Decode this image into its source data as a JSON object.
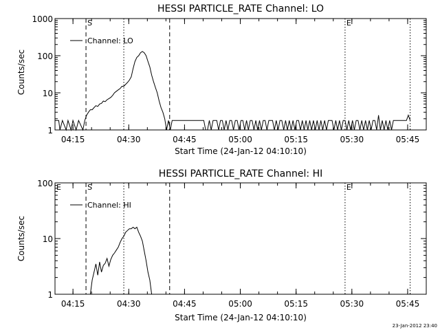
{
  "footer": {
    "stamp": "23-Jan-2012 23:40"
  },
  "chart_data": [
    {
      "type": "line",
      "title": "HESSI PARTICLE_RATE Channel: LO",
      "xlabel": "Start Time (24-Jan-12 04:10:10)",
      "ylabel": "Counts/sec",
      "yscale": "log",
      "ylim": [
        1,
        1000
      ],
      "xlim": [
        "04:10:10",
        "05:50:00"
      ],
      "yticks": [
        {
          "value": 1,
          "label": "1"
        },
        {
          "value": 10,
          "label": "10"
        },
        {
          "value": 100,
          "label": "100"
        },
        {
          "value": 1000,
          "label": "1000"
        }
      ],
      "xticks": [
        {
          "value": "04:15",
          "label": "04:15"
        },
        {
          "value": "04:30",
          "label": "04:30"
        },
        {
          "value": "04:45",
          "label": "04:45"
        },
        {
          "value": "05:00",
          "label": "05:00"
        },
        {
          "value": "05:15",
          "label": "05:15"
        },
        {
          "value": "05:30",
          "label": "05:30"
        },
        {
          "value": "05:45",
          "label": "05:45"
        }
      ],
      "legend": {
        "position": "top-left",
        "entries": [
          "Channel: LO"
        ]
      },
      "markers": [
        {
          "time": "04:18:30",
          "style": "dashed",
          "label": "S"
        },
        {
          "time": "04:28:40",
          "style": "dotted",
          "label": ""
        },
        {
          "time": "04:41:00",
          "style": "dashed",
          "label": ""
        },
        {
          "time": "05:28:10",
          "style": "dotted",
          "label": "E"
        },
        {
          "time": "05:45:40",
          "style": "dotted",
          "label": ""
        }
      ],
      "series": [
        {
          "name": "Channel: LO",
          "x": [
            "04:10:10",
            "04:11:10",
            "04:11:30",
            "04:12:10",
            "04:13:10",
            "04:13:40",
            "04:14:30",
            "04:15:00",
            "04:15:50",
            "04:16:30",
            "04:17:40",
            "04:18:10",
            "04:18:40",
            "04:19:10",
            "04:19:40",
            "04:20:10",
            "04:20:40",
            "04:21:10",
            "04:21:40",
            "04:22:10",
            "04:22:40",
            "04:23:10",
            "04:23:40",
            "04:24:10",
            "04:24:40",
            "04:25:10",
            "04:25:40",
            "04:26:10",
            "04:26:40",
            "04:27:10",
            "04:27:40",
            "04:28:10",
            "04:28:40",
            "04:29:10",
            "04:29:40",
            "04:30:10",
            "04:30:40",
            "04:31:10",
            "04:31:40",
            "04:32:10",
            "04:32:40",
            "04:33:10",
            "04:33:40",
            "04:34:10",
            "04:34:40",
            "04:35:10",
            "04:35:40",
            "04:36:10",
            "04:36:40",
            "04:37:10",
            "04:37:40",
            "04:38:10",
            "04:38:40",
            "04:39:10",
            "04:39:40",
            "04:40:10",
            "04:40:40",
            "04:41:10",
            "04:41:40",
            "04:42:10",
            "04:42:40",
            "04:43:10",
            "04:43:40",
            "04:44:10",
            "04:44:40",
            "04:45:10",
            "04:45:40",
            "04:46:10",
            "04:46:40",
            "04:47:10",
            "04:47:40",
            "04:48:10",
            "04:48:40",
            "04:49:10",
            "04:49:40",
            "04:50:10",
            "04:50:40",
            "04:51:10",
            "04:51:40",
            "04:52:10",
            "04:52:40",
            "04:53:10",
            "04:53:40",
            "04:54:10",
            "04:54:40",
            "04:55:10",
            "04:55:40",
            "04:56:10",
            "04:56:40",
            "04:57:10",
            "04:57:40",
            "04:58:10",
            "04:58:40",
            "04:59:10",
            "04:59:40",
            "05:00:10",
            "05:00:40",
            "05:01:10",
            "05:01:40",
            "05:02:10",
            "05:02:40",
            "05:03:10",
            "05:03:40",
            "05:04:10",
            "05:04:40",
            "05:05:10",
            "05:05:40",
            "05:06:10",
            "05:06:40",
            "05:07:10",
            "05:07:40",
            "05:08:10",
            "05:08:40",
            "05:09:10",
            "05:09:40",
            "05:10:10",
            "05:10:40",
            "05:11:10",
            "05:11:40",
            "05:12:10",
            "05:12:40",
            "05:13:10",
            "05:13:40",
            "05:14:10",
            "05:14:40",
            "05:15:10",
            "05:15:40",
            "05:16:10",
            "05:16:40",
            "05:17:10",
            "05:17:40",
            "05:18:10",
            "05:18:40",
            "05:19:10",
            "05:19:40",
            "05:20:10",
            "05:20:40",
            "05:21:10",
            "05:21:40",
            "05:22:10",
            "05:22:40",
            "05:23:10",
            "05:23:40",
            "05:24:10",
            "05:24:40",
            "05:25:10",
            "05:25:40",
            "05:26:10",
            "05:26:40",
            "05:27:10",
            "05:27:40",
            "05:28:10",
            "05:28:40",
            "05:29:10",
            "05:29:40",
            "05:30:10",
            "05:30:40",
            "05:31:10",
            "05:31:40",
            "05:32:10",
            "05:32:40",
            "05:33:10",
            "05:33:40",
            "05:34:10",
            "05:34:40",
            "05:35:10",
            "05:35:40",
            "05:36:10",
            "05:36:40",
            "05:37:10",
            "05:37:40",
            "05:38:10",
            "05:38:40",
            "05:39:10",
            "05:39:40",
            "05:40:10",
            "05:40:40",
            "05:41:10",
            "05:41:40",
            "05:42:10",
            "05:42:40",
            "05:43:10",
            "05:43:40",
            "05:44:10",
            "05:44:40",
            "05:45:10",
            "05:45:40"
          ],
          "y": [
            1.8,
            1.8,
            1,
            1.8,
            1,
            1.8,
            1,
            1.8,
            1,
            1.8,
            1,
            1.8,
            2.5,
            3,
            3.5,
            3.5,
            4,
            4.5,
            4.3,
            5,
            5.2,
            6,
            5.8,
            6.5,
            7,
            7.5,
            8.5,
            10,
            11,
            12,
            13,
            15,
            15,
            17,
            19,
            22,
            27,
            45,
            70,
            90,
            100,
            120,
            130,
            120,
            100,
            70,
            50,
            30,
            20,
            14,
            10,
            6,
            4,
            3,
            2,
            1,
            1.8,
            1,
            1.8,
            1.8,
            1.8,
            1.8,
            1.8,
            1.8,
            1.8,
            1.8,
            1.8,
            1.8,
            1.8,
            1.8,
            1.8,
            1.8,
            1.8,
            1.8,
            1.8,
            1.8,
            1,
            1,
            1.8,
            1,
            1.8,
            1.8,
            1.8,
            1,
            1.8,
            1.8,
            1,
            1.8,
            1,
            1.8,
            1.8,
            1,
            1.8,
            1.8,
            1,
            1.8,
            1.8,
            1,
            1.8,
            1,
            1.8,
            1.8,
            1,
            1.8,
            1,
            1.8,
            1,
            1.8,
            1.8,
            1,
            1.8,
            1.8,
            1.8,
            1,
            1.8,
            1,
            1.8,
            1.8,
            1,
            1.8,
            1,
            1.8,
            1,
            1.8,
            1,
            1.8,
            1.8,
            1,
            1.8,
            1,
            1.8,
            1,
            1.8,
            1,
            1.8,
            1,
            1.8,
            1,
            1.8,
            1,
            1.8,
            1,
            1.8,
            1.8,
            1.8,
            1,
            1.8,
            1,
            1.8,
            1,
            1.8,
            1.8,
            1,
            1.8,
            1,
            1.8,
            1,
            1.8,
            1.8,
            1,
            1.8,
            1,
            1.8,
            1,
            1.8,
            1,
            1.8,
            1.8,
            1,
            2.5,
            1,
            1.8,
            1,
            1.8,
            1,
            1.8,
            1,
            1.8,
            1.8,
            1.8,
            1.8,
            1.8,
            1.8,
            1.8,
            1.8,
            2.5,
            1.8
          ]
        }
      ]
    },
    {
      "type": "line",
      "title": "HESSI PARTICLE_RATE Channel: HI",
      "xlabel": "Start Time (24-Jan-12 04:10:10)",
      "ylabel": "Counts/sec",
      "yscale": "log",
      "ylim": [
        1,
        100
      ],
      "xlim": [
        "04:10:10",
        "05:50:00"
      ],
      "yticks": [
        {
          "value": 1,
          "label": "1"
        },
        {
          "value": 10,
          "label": "10"
        },
        {
          "value": 100,
          "label": "100"
        }
      ],
      "xticks": [
        {
          "value": "04:15",
          "label": "04:15"
        },
        {
          "value": "04:30",
          "label": "04:30"
        },
        {
          "value": "04:45",
          "label": "04:45"
        },
        {
          "value": "05:00",
          "label": "05:00"
        },
        {
          "value": "05:15",
          "label": "05:15"
        },
        {
          "value": "05:30",
          "label": "05:30"
        },
        {
          "value": "05:45",
          "label": "05:45"
        }
      ],
      "legend": {
        "position": "top-left",
        "entries": [
          "Channel: HI"
        ]
      },
      "corner_label": "E",
      "markers": [
        {
          "time": "04:18:30",
          "style": "dashed",
          "label": "S"
        },
        {
          "time": "04:28:40",
          "style": "dotted",
          "label": ""
        },
        {
          "time": "04:41:00",
          "style": "dashed",
          "label": ""
        },
        {
          "time": "05:28:10",
          "style": "dotted",
          "label": "E"
        },
        {
          "time": "05:45:40",
          "style": "dotted",
          "label": ""
        }
      ],
      "series": [
        {
          "name": "Channel: HI",
          "x": [
            "04:19:40",
            "04:20:10",
            "04:20:40",
            "04:21:10",
            "04:21:40",
            "04:22:10",
            "04:22:40",
            "04:23:10",
            "04:23:40",
            "04:24:10",
            "04:24:40",
            "04:25:10",
            "04:25:40",
            "04:26:10",
            "04:26:40",
            "04:27:10",
            "04:27:40",
            "04:28:10",
            "04:28:40",
            "04:29:10",
            "04:29:40",
            "04:30:10",
            "04:30:40",
            "04:31:10",
            "04:31:40",
            "04:32:10",
            "04:32:40",
            "04:33:10",
            "04:33:40",
            "04:34:10",
            "04:34:40",
            "04:35:10",
            "04:35:40",
            "04:36:10"
          ],
          "y": [
            1,
            1.8,
            2.5,
            3.5,
            2.2,
            3.8,
            2.5,
            3.3,
            3.6,
            4.4,
            3.2,
            4.2,
            5,
            5.5,
            6.2,
            7,
            8.5,
            10,
            11,
            13,
            14,
            15,
            15,
            16,
            15,
            16,
            13,
            11,
            9,
            6,
            4,
            2.5,
            1.8,
            1
          ]
        }
      ]
    }
  ]
}
